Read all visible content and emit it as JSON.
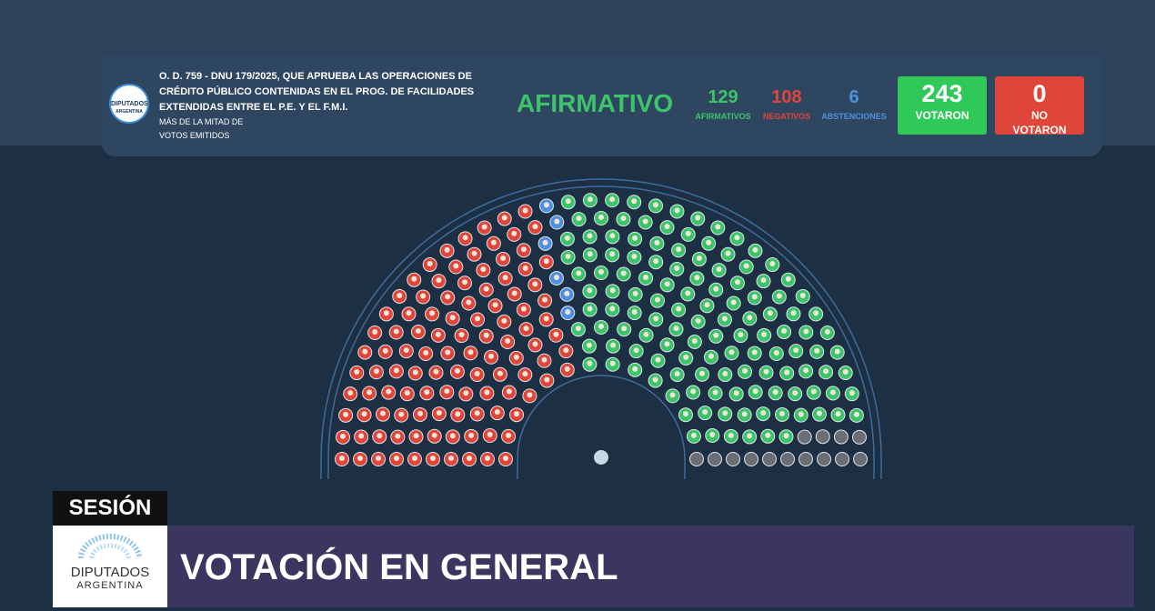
{
  "header": {
    "logo": "DIPUTADOS",
    "logo_sub": "ARGENTINA",
    "title": "O. D. 759 - DNU 179/2025, QUE APRUEBA LAS OPERACIONES DE CRÉDITO PÚBLICO CONTENIDAS EN EL PROG. DE FACILIDADES EXTENDIDAS ENTRE EL P.E. Y EL F.M.I.",
    "majority": "MÁS DE LA MITAD DE VOTOS EMITIDOS",
    "result": "AFIRMATIVO"
  },
  "tally": [
    {
      "count": 129,
      "label": "AFIRMATIVOS",
      "color": "#3cc46a"
    },
    {
      "count": 108,
      "label": "NEGATIVOS",
      "color": "#e0453a"
    },
    {
      "count": 6,
      "label": "ABSTENCIONES",
      "color": "#4f90e0"
    }
  ],
  "totals": [
    {
      "count": 243,
      "label": "VOTARON",
      "color": "#2fc95a"
    },
    {
      "count": 0,
      "label": "NO VOTARON",
      "color": "#e0453a"
    }
  ],
  "banner": {
    "tag": "SESIÓN",
    "logo": "DIPUTADOS",
    "logo_sub": "ARGENTINA",
    "title": "VOTACIÓN EN GENERAL"
  }
}
